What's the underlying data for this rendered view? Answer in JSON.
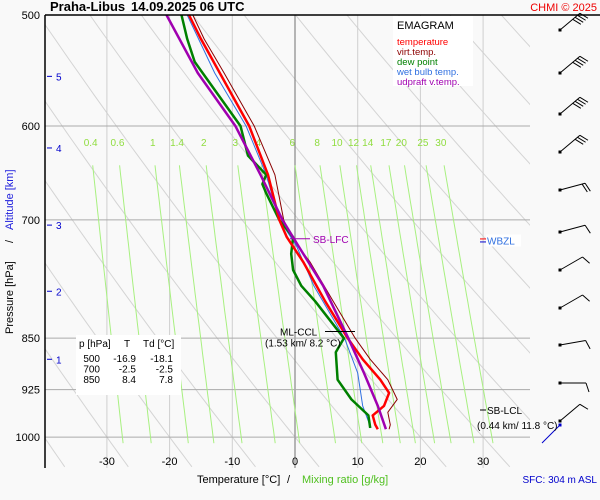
{
  "header": {
    "station": "Praha-Libus",
    "datetime": "14.09.2025 06 UTC",
    "copyright": "CHMI © 2025"
  },
  "footer": {
    "sfc_label": "SFC: 304 m ASL"
  },
  "colors": {
    "temperature": "#ff0000",
    "virt_temp": "#8b0000",
    "dew_point": "#008000",
    "wet_bulb": "#3070e0",
    "updraft": "#a000b0",
    "mixing_ratio": "#90ee60",
    "altitude": "#0000cc",
    "copyright": "#ee0000"
  },
  "table": {
    "headers": [
      "p [hPa]",
      "T",
      "Td [°C]"
    ],
    "rows": [
      [
        "500",
        "-16.9",
        "-18.1"
      ],
      [
        "700",
        "-2.5",
        "-2.5"
      ],
      [
        "850",
        "8.4",
        "7.8"
      ]
    ]
  },
  "chart_data": {
    "type": "line",
    "title": "EMAGRAM",
    "xlabel": "Temperature [°C]",
    "xlabel2": "Mixing ratio [g/kg]",
    "ylabel": "Pressure [hPa]",
    "ylabel2": "Altitude [km]",
    "xlim": [
      -40,
      42
    ],
    "ylim": [
      1000,
      500
    ],
    "x_ticks": [
      -30,
      -20,
      -10,
      0,
      10,
      20,
      30
    ],
    "y_ticks": [
      500,
      600,
      700,
      850,
      925,
      1000
    ],
    "altitude_ticks": [
      {
        "km": "1",
        "p": 880
      },
      {
        "km": "2",
        "p": 787
      },
      {
        "km": "3",
        "p": 706
      },
      {
        "km": "4",
        "p": 622
      },
      {
        "km": "5",
        "p": 553
      }
    ],
    "mixing_ratio_labels": [
      "0.4",
      "0.6",
      "1",
      "1.4",
      "2",
      "3",
      "4",
      "6",
      "8",
      "10",
      "12",
      "14",
      "17",
      "20",
      "25",
      "30"
    ],
    "legend": {
      "placement": "top-right",
      "entries": [
        "temperature",
        "virt.temp.",
        "dew point",
        "wet bulb temp.",
        "udpraft v.temp."
      ]
    },
    "series": [
      {
        "name": "temperature",
        "points": [
          [
            500,
            -16.9
          ],
          [
            520,
            -15.0
          ],
          [
            550,
            -12.0
          ],
          [
            600,
            -7.3
          ],
          [
            650,
            -4.3
          ],
          [
            700,
            -2.5
          ],
          [
            720,
            -1.3
          ],
          [
            750,
            1.3
          ],
          [
            800,
            4.8
          ],
          [
            850,
            8.4
          ],
          [
            880,
            10.8
          ],
          [
            910,
            13.6
          ],
          [
            930,
            15.0
          ],
          [
            950,
            14.2
          ],
          [
            965,
            12.4
          ],
          [
            980,
            12.8
          ],
          [
            987,
            13.2
          ]
        ]
      },
      {
        "name": "virt.temp.",
        "points": [
          [
            500,
            -16.3
          ],
          [
            520,
            -14.5
          ],
          [
            550,
            -11.3
          ],
          [
            600,
            -6.5
          ],
          [
            650,
            -3.2
          ],
          [
            700,
            -1.8
          ],
          [
            720,
            -0.6
          ],
          [
            750,
            2.4
          ],
          [
            800,
            6.1
          ],
          [
            850,
            9.6
          ],
          [
            880,
            12.0
          ],
          [
            910,
            14.8
          ],
          [
            940,
            16.3
          ],
          [
            960,
            14.8
          ],
          [
            980,
            15.2
          ],
          [
            987,
            15.0
          ]
        ]
      },
      {
        "name": "dew point",
        "points": [
          [
            500,
            -18.1
          ],
          [
            520,
            -17.2
          ],
          [
            540,
            -16.0
          ],
          [
            600,
            -8.7
          ],
          [
            630,
            -7.5
          ],
          [
            650,
            -4.6
          ],
          [
            660,
            -5.2
          ],
          [
            670,
            -4.6
          ],
          [
            700,
            -2.5
          ],
          [
            720,
            -0.3
          ],
          [
            740,
            -0.6
          ],
          [
            760,
            -0.3
          ],
          [
            780,
            1.0
          ],
          [
            800,
            3.2
          ],
          [
            830,
            6.0
          ],
          [
            850,
            7.8
          ],
          [
            870,
            6.5
          ],
          [
            910,
            6.8
          ],
          [
            940,
            9.0
          ],
          [
            965,
            11.7
          ],
          [
            985,
            12.0
          ]
        ]
      },
      {
        "name": "wet bulb temp.",
        "points": [
          [
            500,
            -17.2
          ],
          [
            550,
            -12.8
          ],
          [
            600,
            -7.8
          ],
          [
            650,
            -4.6
          ],
          [
            700,
            -2.5
          ],
          [
            730,
            0.2
          ],
          [
            780,
            3.0
          ],
          [
            850,
            7.9
          ],
          [
            900,
            10.0
          ],
          [
            950,
            10.8
          ],
          [
            985,
            12.1
          ]
        ]
      },
      {
        "name": "udpraft v.temp.",
        "points": [
          [
            500,
            -20.5
          ],
          [
            550,
            -15.5
          ],
          [
            600,
            -9.5
          ],
          [
            650,
            -5.5
          ],
          [
            700,
            -2.0
          ],
          [
            730,
            0.5
          ],
          [
            780,
            4.5
          ],
          [
            850,
            8.5
          ],
          [
            900,
            11.0
          ],
          [
            950,
            13.2
          ],
          [
            987,
            14.5
          ]
        ]
      }
    ],
    "annotations": [
      {
        "label": "SB-LFC",
        "p": 722
      },
      {
        "label": "WBZL",
        "p": 724
      },
      {
        "label": "ML-CCL",
        "detail": "(1.53 km/ 8.2 °C)",
        "p": 845
      },
      {
        "label": "SB-LCL",
        "detail": "(0.44 km/ 11.8 °C)",
        "p": 950
      }
    ],
    "wind_barbs": [
      {
        "p": 510,
        "dir": 230,
        "speed_kt": 35
      },
      {
        "p": 545,
        "dir": 230,
        "speed_kt": 35
      },
      {
        "p": 585,
        "dir": 230,
        "speed_kt": 35
      },
      {
        "p": 625,
        "dir": 230,
        "speed_kt": 30
      },
      {
        "p": 670,
        "dir": 255,
        "speed_kt": 15
      },
      {
        "p": 715,
        "dir": 255,
        "speed_kt": 10
      },
      {
        "p": 765,
        "dir": 240,
        "speed_kt": 10
      },
      {
        "p": 815,
        "dir": 240,
        "speed_kt": 10
      },
      {
        "p": 860,
        "dir": 260,
        "speed_kt": 10
      },
      {
        "p": 905,
        "dir": 270,
        "speed_kt": 10
      },
      {
        "p": 955,
        "dir": 230,
        "speed_kt": 10
      }
    ]
  }
}
